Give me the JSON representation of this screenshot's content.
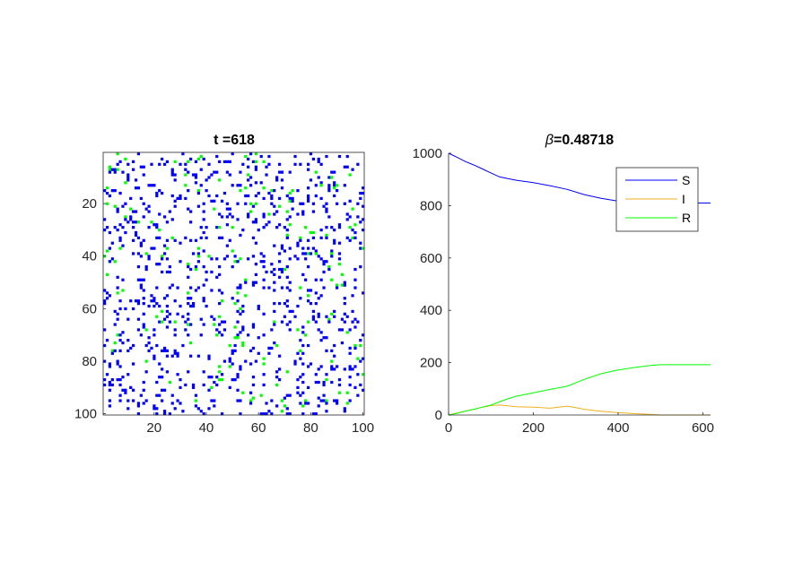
{
  "chart_data": [
    {
      "type": "heatmap",
      "title": "t =618",
      "xlim": [
        1,
        100
      ],
      "ylim": [
        1,
        100
      ],
      "y_reversed": true,
      "xticks": [
        20,
        40,
        60,
        80,
        100
      ],
      "yticks": [
        20,
        40,
        60,
        80,
        100
      ],
      "grid_size": 100,
      "states": [
        {
          "name": "S",
          "color": "#0000ff",
          "fraction": 0.81
        },
        {
          "name": "R",
          "color": "#00ff00",
          "fraction": 0.19
        },
        {
          "name": "empty",
          "color": "#ffffff",
          "fraction": 0.0
        }
      ]
    },
    {
      "type": "line",
      "title_symbol": "β",
      "title_value": "=0.48718",
      "xlim": [
        0,
        618
      ],
      "ylim": [
        0,
        1000
      ],
      "xticks": [
        0,
        200,
        400,
        600
      ],
      "yticks": [
        0,
        200,
        400,
        600,
        800,
        1000
      ],
      "legend_position": "top-right",
      "series": [
        {
          "name": "S",
          "color": "#0000ff",
          "x": [
            0,
            20,
            40,
            60,
            80,
            100,
            120,
            140,
            160,
            200,
            240,
            280,
            320,
            360,
            400,
            440,
            480,
            500,
            540,
            580,
            618
          ],
          "y": [
            1000,
            985,
            968,
            955,
            940,
            925,
            910,
            903,
            897,
            888,
            876,
            862,
            842,
            828,
            817,
            812,
            810,
            810,
            810,
            810,
            810
          ]
        },
        {
          "name": "I",
          "color": "#edb120",
          "x": [
            0,
            20,
            40,
            60,
            80,
            100,
            120,
            140,
            160,
            200,
            240,
            260,
            280,
            300,
            320,
            360,
            400,
            440,
            480,
            500,
            540,
            580,
            618
          ],
          "y": [
            0,
            8,
            15,
            22,
            30,
            36,
            38,
            35,
            32,
            30,
            26,
            30,
            34,
            28,
            22,
            14,
            9,
            5,
            2,
            0,
            0,
            0,
            0
          ]
        },
        {
          "name": "R",
          "color": "#00ff00",
          "x": [
            0,
            20,
            40,
            60,
            80,
            100,
            120,
            140,
            160,
            200,
            240,
            280,
            320,
            360,
            400,
            440,
            480,
            500,
            540,
            580,
            618
          ],
          "y": [
            0,
            6,
            15,
            22,
            30,
            38,
            50,
            62,
            72,
            85,
            98,
            110,
            136,
            158,
            172,
            182,
            190,
            192,
            192,
            192,
            192
          ]
        }
      ]
    }
  ]
}
